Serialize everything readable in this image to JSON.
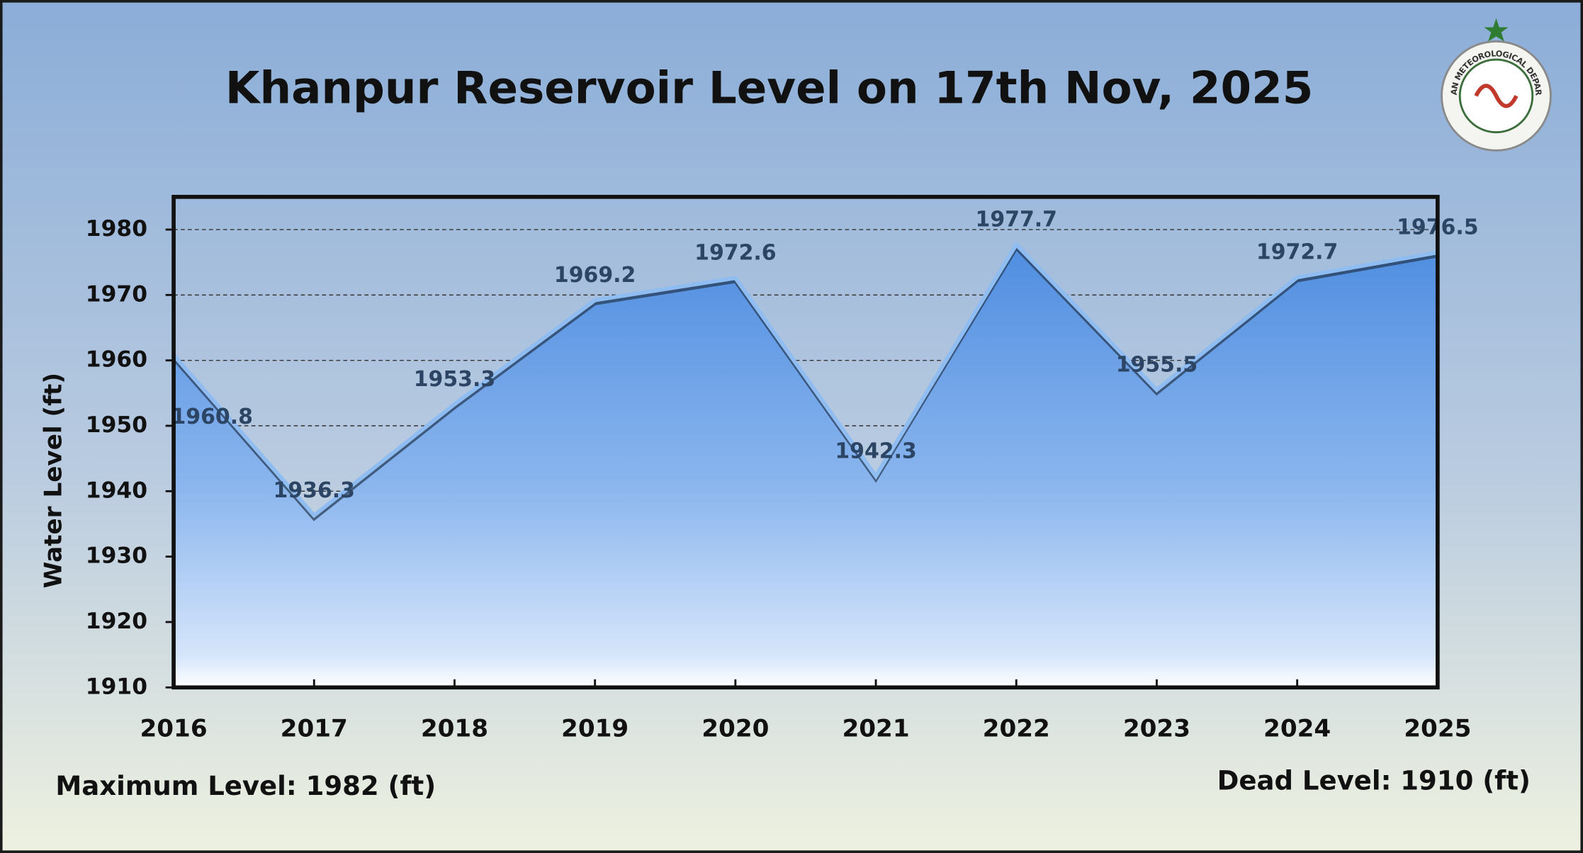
{
  "chart_data": {
    "type": "area",
    "title": "Khanpur Reservoir Level on 17th Nov, 2025",
    "y_label": "Water Level (ft)",
    "categories": [
      "2016",
      "2017",
      "2018",
      "2019",
      "2020",
      "2021",
      "2022",
      "2023",
      "2024",
      "2025"
    ],
    "values": [
      1960.8,
      1936.3,
      1953.3,
      1969.2,
      1972.6,
      1942.3,
      1977.7,
      1955.5,
      1972.7,
      1976.5
    ],
    "color": "#5b96e2",
    "ylim": [
      1910,
      1985
    ],
    "yticks": [
      1910,
      1920,
      1930,
      1940,
      1950,
      1960,
      1970,
      1980
    ],
    "grid": true,
    "annotations": [
      "Maximum Level: 1982 (ft)",
      "Dead Level: 1910 (ft)"
    ],
    "logo_text": "PAKISTAN METEOROLOGICAL DEPARTMENT"
  }
}
